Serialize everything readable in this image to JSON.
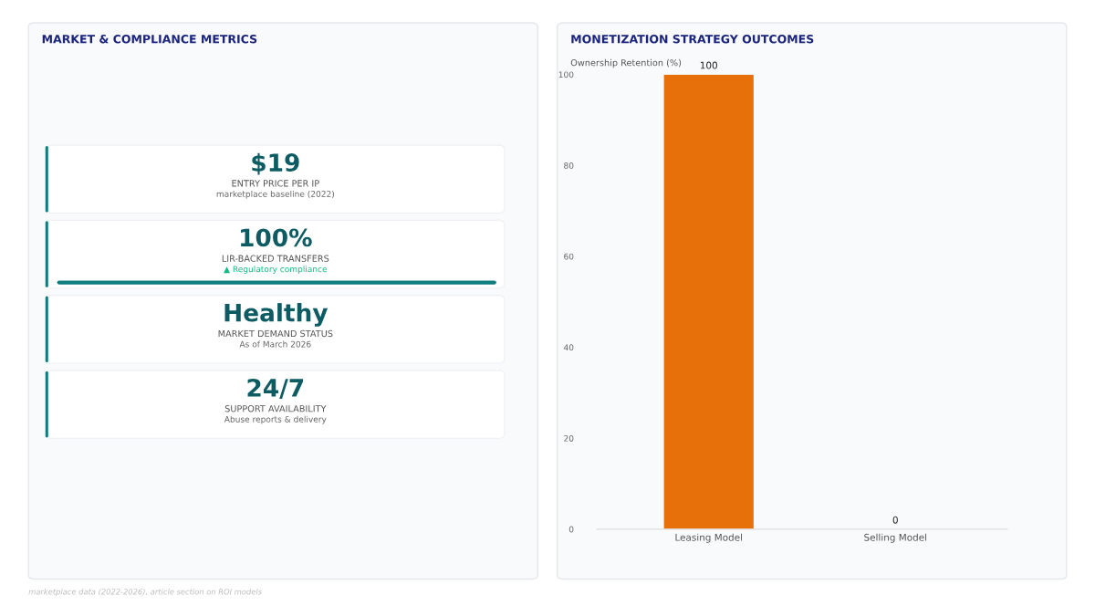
{
  "chart_data": [
    {
      "type": "other",
      "title": "MARKET & COMPLIANCE METRICS",
      "annotations": [
        "$19",
        "ENTRY PRICE PER IP",
        "marketplace baseline (2022)",
        "100%",
        "LIR-BACKED TRANSFERS",
        "▲ Regulatory compliance",
        "Healthy",
        "MARKET DEMAND STATUS",
        "As of March 2026",
        "24/7",
        "SUPPORT AVAILABILITY",
        "Abuse reports & delivery",
        "marketplace data (2022-2026), article section on ROI models"
      ]
    },
    {
      "type": "bar",
      "title": "MONETIZATION STRATEGY OUTCOMES",
      "ylabel": "Ownership Retention (%)",
      "categories": [
        "Leasing Model",
        "Selling Model"
      ],
      "values": [
        100,
        0
      ],
      "color": "#e8700a",
      "ylim": [
        0,
        100
      ],
      "yticks": [
        0,
        20,
        40,
        60,
        80,
        100
      ],
      "data_labels": true,
      "grid": false
    }
  ]
}
